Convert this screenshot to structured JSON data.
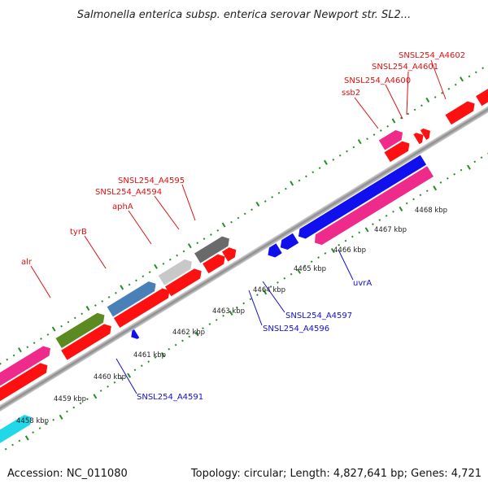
{
  "title": "Salmonella enterica subsp. enterica serovar Newport str. SL2...",
  "footer": {
    "accession": "Accession: NC_011080",
    "topology": "Topology: circular; Length: 4,827,641 bp; Genes: 4,721"
  },
  "kbp_labels": [
    "4458 kbp",
    "4459 kbp",
    "4460 kbp",
    "4461 kbp",
    "4462 kbp",
    "4463 kbp",
    "4464 kbp",
    "4465 kbp",
    "4466 kbp",
    "4467 kbp",
    "4468 kbp"
  ],
  "forward_labels": [
    "alr",
    "tyrB",
    "aphA",
    "SNSL254_A4594",
    "SNSL254_A4595",
    "ssb2",
    "SNSL254_A4600",
    "SNSL254_A4601",
    "SNSL254_A4602"
  ],
  "reverse_labels": [
    "SNSL254_A4591",
    "SNSL254_A4596",
    "SNSL254_A4597",
    "uvrA"
  ],
  "colors": {
    "forward_label": "#e01010",
    "reverse_label": "#1010d0",
    "backbone": "#999999",
    "ticks": "#2a8a2a",
    "gene_red": "#ff1010",
    "gene_blue": "#1010ee",
    "gene_pink": "#ee2a8a",
    "gene_olive": "#5a8a20",
    "gene_steelblue": "#4a80b8",
    "gene_silver": "#c8c8c8",
    "gene_darkgray": "#6a6a6a",
    "gene_cyan": "#20d8e8"
  }
}
